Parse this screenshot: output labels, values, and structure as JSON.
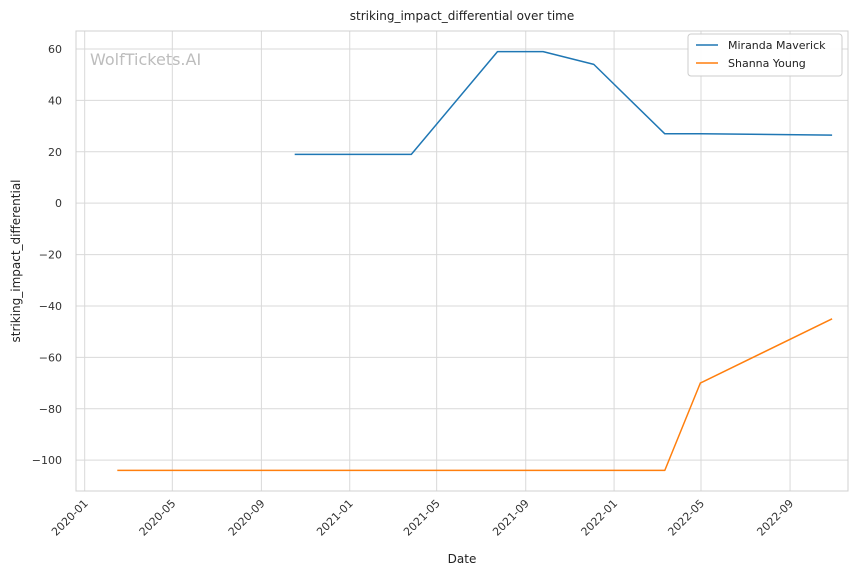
{
  "chart_data": {
    "type": "line",
    "title": "striking_impact_differential over time",
    "xlabel": "Date",
    "ylabel": "striking_impact_differential",
    "watermark": "WolfTickets.AI",
    "xlim": [
      "2019-12-20",
      "2022-11-20"
    ],
    "ylim": [
      -112,
      67
    ],
    "x_ticks": [
      "2020-01-01",
      "2020-05-01",
      "2020-09-01",
      "2021-01-01",
      "2021-05-01",
      "2021-09-01",
      "2022-01-01",
      "2022-05-01",
      "2022-09-01"
    ],
    "x_tick_labels": [
      "2020-01",
      "2020-05",
      "2020-09",
      "2021-01",
      "2021-05",
      "2021-09",
      "2022-01",
      "2022-05",
      "2022-09"
    ],
    "y_ticks": [
      60,
      40,
      20,
      0,
      -20,
      -40,
      -60,
      -80,
      -100
    ],
    "y_tick_labels": [
      "60",
      "40",
      "20",
      "0",
      "−20",
      "−40",
      "−60",
      "−80",
      "−100"
    ],
    "grid": true,
    "legend_position": "top-right",
    "series": [
      {
        "name": "Miranda Maverick",
        "color": "#1f77b4",
        "points": [
          {
            "x": "2020-10-17",
            "y": 19
          },
          {
            "x": "2021-03-27",
            "y": 19
          },
          {
            "x": "2021-07-24",
            "y": 59
          },
          {
            "x": "2021-09-25",
            "y": 59
          },
          {
            "x": "2021-12-04",
            "y": 54
          },
          {
            "x": "2022-03-12",
            "y": 27
          },
          {
            "x": "2022-04-30",
            "y": 27
          },
          {
            "x": "2022-10-29",
            "y": 26.5
          }
        ]
      },
      {
        "name": "Shanna Young",
        "color": "#ff7f0e",
        "points": [
          {
            "x": "2020-02-15",
            "y": -104
          },
          {
            "x": "2022-03-12",
            "y": -104
          },
          {
            "x": "2022-04-30",
            "y": -70
          },
          {
            "x": "2022-10-29",
            "y": -45
          }
        ]
      }
    ]
  }
}
